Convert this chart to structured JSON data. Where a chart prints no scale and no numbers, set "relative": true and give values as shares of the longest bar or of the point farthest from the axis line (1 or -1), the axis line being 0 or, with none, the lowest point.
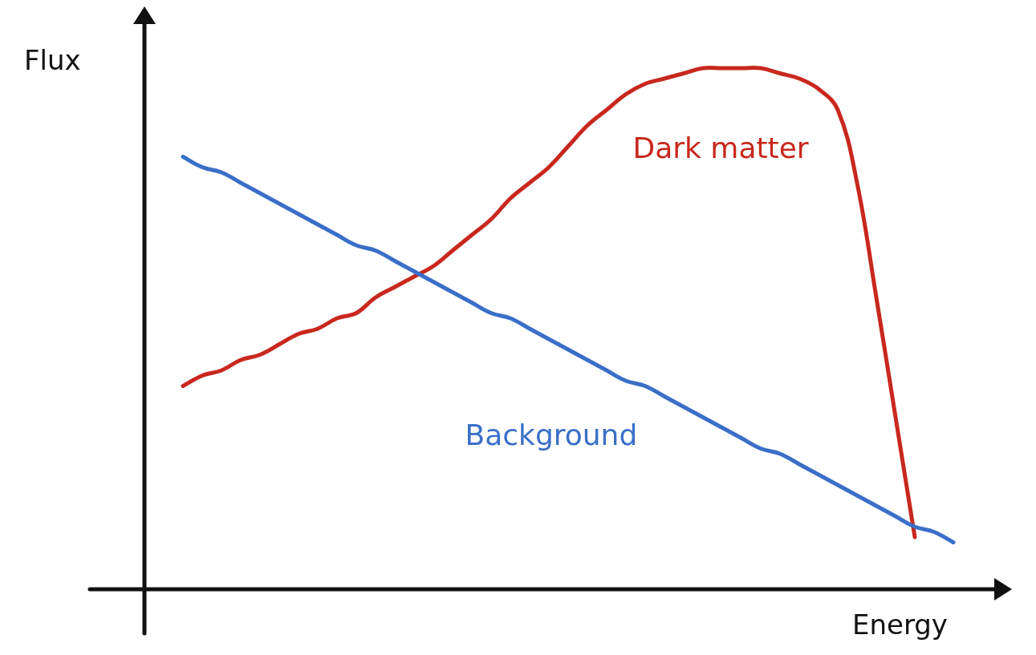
{
  "chart_data": {
    "type": "line",
    "relative": true,
    "xlabel": "Energy",
    "ylabel": "Flux",
    "legend": false,
    "marker": "none",
    "line_style": "solid",
    "categories": [
      null,
      null,
      null,
      null,
      null,
      null,
      null,
      null,
      null,
      null,
      null,
      null,
      null,
      null,
      null,
      null,
      null,
      null,
      null,
      null,
      null,
      null,
      null,
      null,
      null,
      null,
      null,
      null,
      null,
      null,
      null,
      null,
      null,
      null,
      null,
      null,
      null,
      null,
      null,
      null,
      null,
      null,
      null,
      null,
      null
    ],
    "series": [
      {
        "name": "Background",
        "color": "#3a6fc8",
        "values": [
          null,
          null,
          0.83,
          0.81,
          0.8,
          0.78,
          0.76,
          0.74,
          0.72,
          0.7,
          0.68,
          0.66,
          0.65,
          0.63,
          0.61,
          0.59,
          0.57,
          0.55,
          0.53,
          0.52,
          0.5,
          0.48,
          0.46,
          0.44,
          0.42,
          0.4,
          0.39,
          0.37,
          0.35,
          0.33,
          0.31,
          0.29,
          0.27,
          0.26,
          0.24,
          0.22,
          0.2,
          0.18,
          0.16,
          0.14,
          0.12,
          0.11,
          0.09,
          null,
          null
        ]
      },
      {
        "name": "Dark matter",
        "color": "#c8281e",
        "values": [
          null,
          null,
          0.39,
          0.41,
          0.42,
          0.44,
          0.45,
          0.47,
          0.49,
          0.5,
          0.52,
          0.53,
          0.56,
          0.58,
          0.6,
          0.62,
          0.65,
          0.68,
          0.71,
          0.75,
          0.78,
          0.81,
          0.85,
          0.89,
          0.92,
          0.95,
          0.97,
          0.98,
          0.99,
          1.0,
          1.0,
          1.0,
          1.0,
          0.99,
          0.98,
          0.96,
          0.92,
          0.78,
          0.56,
          0.33,
          0.1,
          null,
          null,
          null,
          null
        ]
      }
    ]
  }
}
